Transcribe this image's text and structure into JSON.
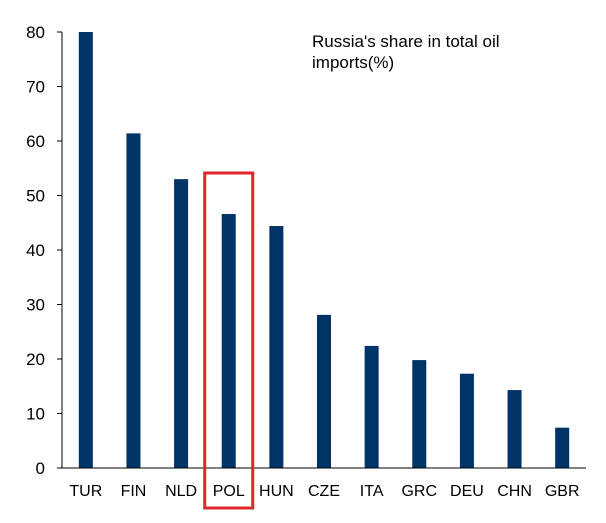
{
  "chart_data": {
    "type": "bar",
    "title_lines": [
      "Russia's share  in total oil",
      "imports(%)"
    ],
    "categories": [
      "TUR",
      "FIN",
      "NLD",
      "POL",
      "HUN",
      "CZE",
      "ITA",
      "GRC",
      "DEU",
      "CHN",
      "GBR"
    ],
    "values": [
      80,
      61.4,
      53,
      46.6,
      44.4,
      28.1,
      22.4,
      19.8,
      17.3,
      14.3,
      7.4
    ],
    "ylim": [
      0,
      80
    ],
    "yticks": [
      0,
      10,
      20,
      30,
      40,
      50,
      60,
      70,
      80
    ],
    "xlabel": "",
    "ylabel": "",
    "grid": false,
    "bar_color": "#003366",
    "highlight": {
      "category": "POL",
      "color": "#e0262b"
    }
  }
}
